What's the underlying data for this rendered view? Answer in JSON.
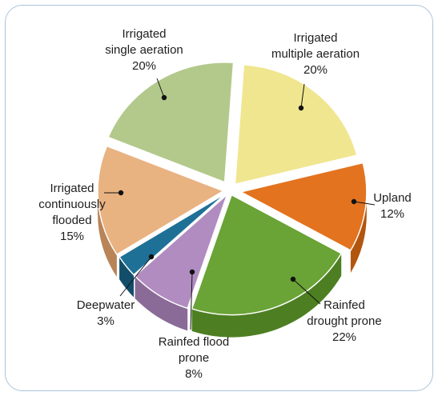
{
  "chart_data": {
    "type": "pie",
    "title": "",
    "categories": [
      "Irrigated multiple aeration",
      "Upland",
      "Rainfed drought prone",
      "Rainfed flood prone",
      "Deepwater",
      "Irrigated continuously flooded",
      "Irrigated single aeration"
    ],
    "values": [
      20,
      12,
      22,
      8,
      3,
      15,
      20
    ],
    "labels": [
      {
        "name": "Irrigated\nmultiple aeration",
        "pct": "20%"
      },
      {
        "name": "Upland",
        "pct": "12%"
      },
      {
        "name": "Rainfed\ndrought prone",
        "pct": "22%"
      },
      {
        "name": "Rainfed flood\nprone",
        "pct": "8%"
      },
      {
        "name": "Deepwater",
        "pct": "3%"
      },
      {
        "name": "Irrigated\ncontinuously\nflooded",
        "pct": "15%"
      },
      {
        "name": "Irrigated\nsingle aeration",
        "pct": "20%"
      }
    ],
    "colors": [
      "#f0e68f",
      "#e3731f",
      "#6aa336",
      "#b08cc0",
      "#1f7097",
      "#e9b281",
      "#b3c98b"
    ],
    "side_colors": [
      "#c9bf5e",
      "#b2560f",
      "#4d7f22",
      "#8a6b98",
      "#124d69",
      "#b98458",
      "#859b5c"
    ],
    "style": "3d-exploded"
  }
}
